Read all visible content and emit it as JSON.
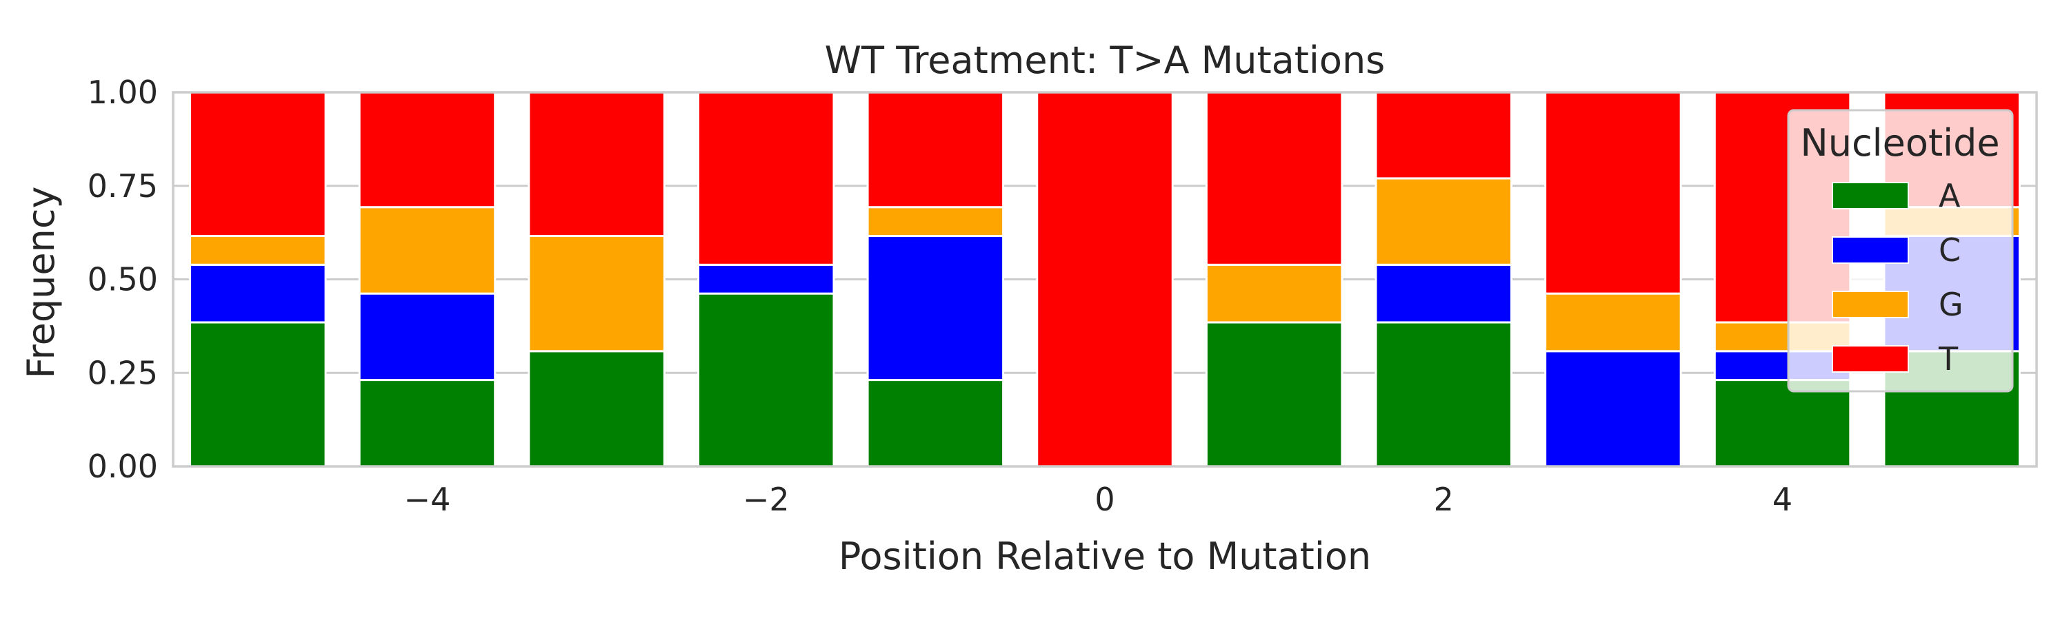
{
  "chart_data": {
    "type": "bar",
    "stacked": true,
    "title": "WT Treatment: T>A Mutations",
    "xlabel": "Position Relative to Mutation",
    "ylabel": "Frequency",
    "ylim": [
      0,
      1
    ],
    "xlim": [
      -5.5,
      5.5
    ],
    "yticks": [
      "0.00",
      "0.25",
      "0.50",
      "0.75",
      "1.00"
    ],
    "ytick_values": [
      0,
      0.25,
      0.5,
      0.75,
      1.0
    ],
    "xticks": [
      "−4",
      "−2",
      "0",
      "2",
      "4"
    ],
    "xtick_values": [
      -4,
      -2,
      0,
      2,
      4
    ],
    "grid": true,
    "reference_line": {
      "x": 0,
      "style": "dashed",
      "color": "#ff0000"
    },
    "x": [
      -5,
      -4,
      -3,
      -2,
      -1,
      0,
      1,
      2,
      3,
      4,
      5
    ],
    "series": [
      {
        "name": "A",
        "color": "#008000",
        "values": [
          0.385,
          0.231,
          0.308,
          0.462,
          0.231,
          0.0,
          0.385,
          0.385,
          0.0,
          0.231,
          0.308
        ]
      },
      {
        "name": "C",
        "color": "#0000ff",
        "values": [
          0.154,
          0.231,
          0.0,
          0.077,
          0.385,
          0.0,
          0.0,
          0.154,
          0.308,
          0.077,
          0.308
        ]
      },
      {
        "name": "G",
        "color": "#ffa500",
        "values": [
          0.077,
          0.231,
          0.308,
          0.0,
          0.077,
          0.0,
          0.154,
          0.231,
          0.154,
          0.077,
          0.077
        ]
      },
      {
        "name": "T",
        "color": "#ff0000",
        "values": [
          0.384,
          0.307,
          0.384,
          0.461,
          0.307,
          1.0,
          0.461,
          0.23,
          0.538,
          0.615,
          0.307
        ]
      }
    ],
    "legend": {
      "title": "Nucleotide",
      "position": "top-right"
    }
  }
}
